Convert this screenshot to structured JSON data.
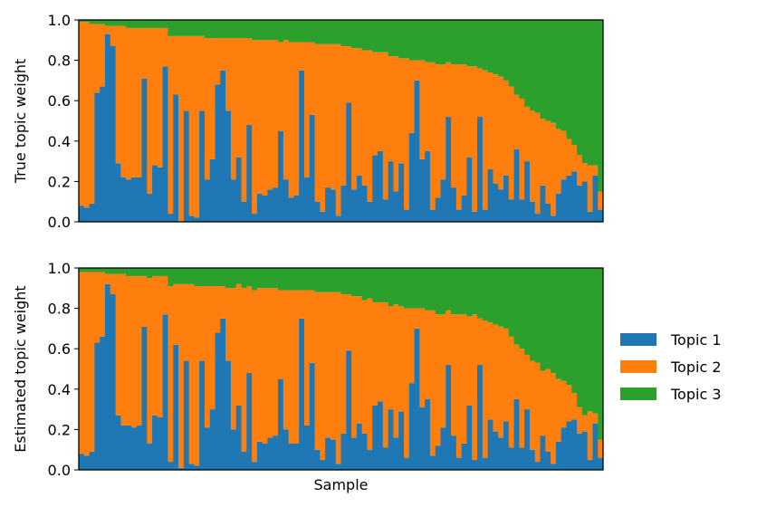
{
  "chart_data": [
    {
      "type": "bar",
      "stacked": true,
      "title": "",
      "xlabel": "",
      "ylabel": "True topic weight",
      "ylim": [
        0,
        1
      ],
      "yticks": [
        "0.0",
        "0.2",
        "0.4",
        "0.6",
        "0.8",
        "1.0"
      ],
      "x_ticks_shown": false,
      "series": [
        {
          "name": "Topic 1",
          "color": "#1f77b4",
          "values": [
            0.08,
            0.07,
            0.09,
            0.64,
            0.67,
            0.93,
            0.87,
            0.29,
            0.22,
            0.21,
            0.22,
            0.22,
            0.71,
            0.14,
            0.28,
            0.27,
            0.77,
            0.04,
            0.63,
            0.0,
            0.55,
            0.03,
            0.02,
            0.55,
            0.21,
            0.31,
            0.68,
            0.75,
            0.55,
            0.21,
            0.32,
            0.1,
            0.48,
            0.04,
            0.14,
            0.13,
            0.16,
            0.17,
            0.45,
            0.21,
            0.12,
            0.13,
            0.75,
            0.22,
            0.53,
            0.1,
            0.05,
            0.17,
            0.16,
            0.03,
            0.18,
            0.59,
            0.16,
            0.23,
            0.18,
            0.1,
            0.33,
            0.35,
            0.11,
            0.3,
            0.15,
            0.29,
            0.06,
            0.44,
            0.7,
            0.31,
            0.35,
            0.06,
            0.12,
            0.21,
            0.52,
            0.17,
            0.06,
            0.13,
            0.32,
            0.05,
            0.52,
            0.06,
            0.26,
            0.19,
            0.16,
            0.23,
            0.11,
            0.36,
            0.11,
            0.3,
            0.1,
            0.04,
            0.18,
            0.09,
            0.03,
            0.14,
            0.21,
            0.23,
            0.25,
            0.18,
            0.2,
            0.05,
            0.23,
            0.06
          ]
        },
        {
          "name": "Topic 2",
          "color": "#ff7f0e",
          "values": [
            0.91,
            0.92,
            0.89,
            0.34,
            0.31,
            0.04,
            0.1,
            0.68,
            0.75,
            0.75,
            0.74,
            0.74,
            0.25,
            0.82,
            0.68,
            0.69,
            0.19,
            0.88,
            0.29,
            0.92,
            0.37,
            0.89,
            0.9,
            0.37,
            0.7,
            0.6,
            0.23,
            0.16,
            0.36,
            0.7,
            0.59,
            0.81,
            0.43,
            0.86,
            0.76,
            0.77,
            0.74,
            0.73,
            0.44,
            0.69,
            0.77,
            0.76,
            0.14,
            0.67,
            0.36,
            0.78,
            0.83,
            0.71,
            0.72,
            0.85,
            0.69,
            0.28,
            0.7,
            0.63,
            0.67,
            0.75,
            0.51,
            0.49,
            0.73,
            0.52,
            0.67,
            0.52,
            0.75,
            0.36,
            0.1,
            0.49,
            0.44,
            0.73,
            0.66,
            0.57,
            0.27,
            0.61,
            0.72,
            0.65,
            0.45,
            0.72,
            0.24,
            0.69,
            0.48,
            0.54,
            0.56,
            0.47,
            0.56,
            0.27,
            0.5,
            0.27,
            0.45,
            0.5,
            0.33,
            0.41,
            0.46,
            0.32,
            0.24,
            0.18,
            0.13,
            0.15,
            0.09,
            0.23,
            0.05,
            0.09
          ]
        },
        {
          "name": "Topic 3",
          "color": "#2ca02c",
          "values": [
            0.01,
            0.01,
            0.02,
            0.02,
            0.02,
            0.03,
            0.03,
            0.03,
            0.03,
            0.04,
            0.04,
            0.04,
            0.04,
            0.04,
            0.04,
            0.04,
            0.04,
            0.08,
            0.08,
            0.08,
            0.08,
            0.08,
            0.08,
            0.08,
            0.09,
            0.09,
            0.09,
            0.09,
            0.09,
            0.09,
            0.09,
            0.09,
            0.09,
            0.1,
            0.1,
            0.1,
            0.1,
            0.1,
            0.11,
            0.1,
            0.11,
            0.11,
            0.11,
            0.11,
            0.11,
            0.12,
            0.12,
            0.12,
            0.12,
            0.12,
            0.13,
            0.13,
            0.14,
            0.14,
            0.15,
            0.15,
            0.16,
            0.16,
            0.16,
            0.18,
            0.18,
            0.19,
            0.19,
            0.2,
            0.2,
            0.2,
            0.21,
            0.21,
            0.22,
            0.22,
            0.21,
            0.22,
            0.22,
            0.22,
            0.23,
            0.23,
            0.24,
            0.25,
            0.26,
            0.27,
            0.28,
            0.3,
            0.33,
            0.37,
            0.39,
            0.43,
            0.45,
            0.46,
            0.49,
            0.5,
            0.51,
            0.54,
            0.55,
            0.59,
            0.62,
            0.67,
            0.71,
            0.72,
            0.72,
            0.85
          ]
        }
      ]
    },
    {
      "type": "bar",
      "stacked": true,
      "title": "",
      "xlabel": "Sample",
      "ylabel": "Estimated topic weight",
      "ylim": [
        0,
        1
      ],
      "yticks": [
        "0.0",
        "0.2",
        "0.4",
        "0.6",
        "0.8",
        "1.0"
      ],
      "x_ticks_shown": false,
      "series": [
        {
          "name": "Topic 1",
          "color": "#1f77b4",
          "values": [
            0.08,
            0.07,
            0.09,
            0.63,
            0.66,
            0.92,
            0.87,
            0.27,
            0.22,
            0.22,
            0.21,
            0.22,
            0.71,
            0.13,
            0.27,
            0.26,
            0.77,
            0.04,
            0.62,
            0.01,
            0.54,
            0.03,
            0.02,
            0.54,
            0.21,
            0.3,
            0.68,
            0.75,
            0.54,
            0.2,
            0.32,
            0.09,
            0.48,
            0.04,
            0.14,
            0.13,
            0.16,
            0.17,
            0.45,
            0.2,
            0.13,
            0.13,
            0.75,
            0.22,
            0.53,
            0.1,
            0.05,
            0.16,
            0.15,
            0.03,
            0.18,
            0.59,
            0.16,
            0.23,
            0.18,
            0.1,
            0.32,
            0.34,
            0.11,
            0.3,
            0.16,
            0.29,
            0.06,
            0.43,
            0.7,
            0.31,
            0.35,
            0.07,
            0.12,
            0.21,
            0.52,
            0.17,
            0.06,
            0.13,
            0.32,
            0.05,
            0.52,
            0.06,
            0.25,
            0.19,
            0.16,
            0.24,
            0.11,
            0.35,
            0.11,
            0.3,
            0.1,
            0.04,
            0.17,
            0.09,
            0.03,
            0.14,
            0.21,
            0.24,
            0.25,
            0.18,
            0.19,
            0.05,
            0.23,
            0.06
          ]
        },
        {
          "name": "Topic 2",
          "color": "#ff7f0e",
          "values": [
            0.9,
            0.91,
            0.89,
            0.35,
            0.32,
            0.05,
            0.1,
            0.7,
            0.75,
            0.74,
            0.75,
            0.74,
            0.25,
            0.82,
            0.69,
            0.7,
            0.19,
            0.87,
            0.3,
            0.91,
            0.38,
            0.89,
            0.89,
            0.37,
            0.7,
            0.61,
            0.23,
            0.16,
            0.36,
            0.7,
            0.6,
            0.81,
            0.43,
            0.85,
            0.76,
            0.77,
            0.74,
            0.73,
            0.44,
            0.69,
            0.76,
            0.76,
            0.14,
            0.67,
            0.36,
            0.78,
            0.83,
            0.72,
            0.73,
            0.85,
            0.69,
            0.28,
            0.7,
            0.63,
            0.66,
            0.75,
            0.51,
            0.49,
            0.72,
            0.51,
            0.66,
            0.52,
            0.74,
            0.37,
            0.1,
            0.49,
            0.44,
            0.72,
            0.65,
            0.56,
            0.27,
            0.6,
            0.71,
            0.64,
            0.44,
            0.72,
            0.23,
            0.68,
            0.48,
            0.53,
            0.55,
            0.46,
            0.55,
            0.27,
            0.49,
            0.27,
            0.44,
            0.49,
            0.32,
            0.41,
            0.45,
            0.31,
            0.23,
            0.18,
            0.13,
            0.13,
            0.08,
            0.24,
            0.05,
            0.09
          ]
        },
        {
          "name": "Topic 3",
          "color": "#2ca02c",
          "values": [
            0.02,
            0.02,
            0.02,
            0.02,
            0.02,
            0.03,
            0.03,
            0.03,
            0.03,
            0.04,
            0.04,
            0.04,
            0.04,
            0.05,
            0.04,
            0.04,
            0.04,
            0.09,
            0.08,
            0.08,
            0.08,
            0.08,
            0.09,
            0.09,
            0.09,
            0.09,
            0.09,
            0.09,
            0.1,
            0.1,
            0.08,
            0.1,
            0.09,
            0.11,
            0.1,
            0.1,
            0.1,
            0.1,
            0.11,
            0.11,
            0.11,
            0.11,
            0.11,
            0.11,
            0.11,
            0.12,
            0.12,
            0.12,
            0.12,
            0.12,
            0.13,
            0.13,
            0.14,
            0.14,
            0.16,
            0.15,
            0.17,
            0.17,
            0.17,
            0.19,
            0.18,
            0.19,
            0.2,
            0.2,
            0.2,
            0.2,
            0.21,
            0.21,
            0.23,
            0.23,
            0.21,
            0.23,
            0.23,
            0.23,
            0.24,
            0.23,
            0.25,
            0.26,
            0.27,
            0.28,
            0.29,
            0.3,
            0.34,
            0.38,
            0.4,
            0.43,
            0.46,
            0.47,
            0.51,
            0.5,
            0.52,
            0.55,
            0.56,
            0.58,
            0.62,
            0.69,
            0.73,
            0.71,
            0.72,
            0.85
          ]
        }
      ]
    }
  ],
  "legend": {
    "placement": "right",
    "items": [
      {
        "label": "Topic 1",
        "color": "#1f77b4"
      },
      {
        "label": "Topic 2",
        "color": "#ff7f0e"
      },
      {
        "label": "Topic 3",
        "color": "#2ca02c"
      }
    ]
  }
}
